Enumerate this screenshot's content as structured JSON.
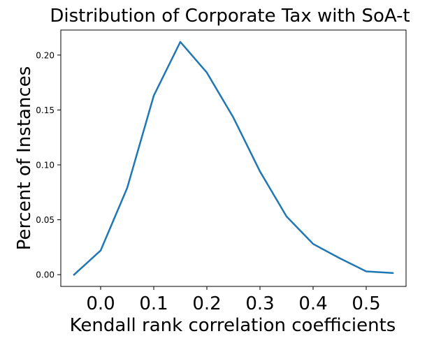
{
  "chart_data": {
    "type": "line",
    "title": "Distribution of Corporate Tax with SoA-t",
    "xlabel": "Kendall rank correlation coefficients",
    "ylabel": "Percent of Instances",
    "xlim": [
      -0.075,
      0.575
    ],
    "ylim": [
      -0.0107,
      0.2228
    ],
    "x_ticks": [
      0.0,
      0.1,
      0.2,
      0.3,
      0.4,
      0.5
    ],
    "x_tick_labels": [
      "0.0",
      "0.1",
      "0.2",
      "0.3",
      "0.4",
      "0.5"
    ],
    "y_ticks": [
      0.0,
      0.05,
      0.1,
      0.15,
      0.2
    ],
    "y_tick_labels": [
      "0.00",
      "0.05",
      "0.10",
      "0.15",
      "0.20"
    ],
    "grid": false,
    "series": [
      {
        "color": "#1f77b4",
        "x": [
          -0.05,
          0.0,
          0.05,
          0.1,
          0.15,
          0.2,
          0.25,
          0.3,
          0.35,
          0.4,
          0.45,
          0.5,
          0.55
        ],
        "y": [
          0.0,
          0.022,
          0.079,
          0.163,
          0.212,
          0.184,
          0.143,
          0.094,
          0.053,
          0.028,
          0.015,
          0.003,
          0.0015
        ]
      }
    ]
  }
}
